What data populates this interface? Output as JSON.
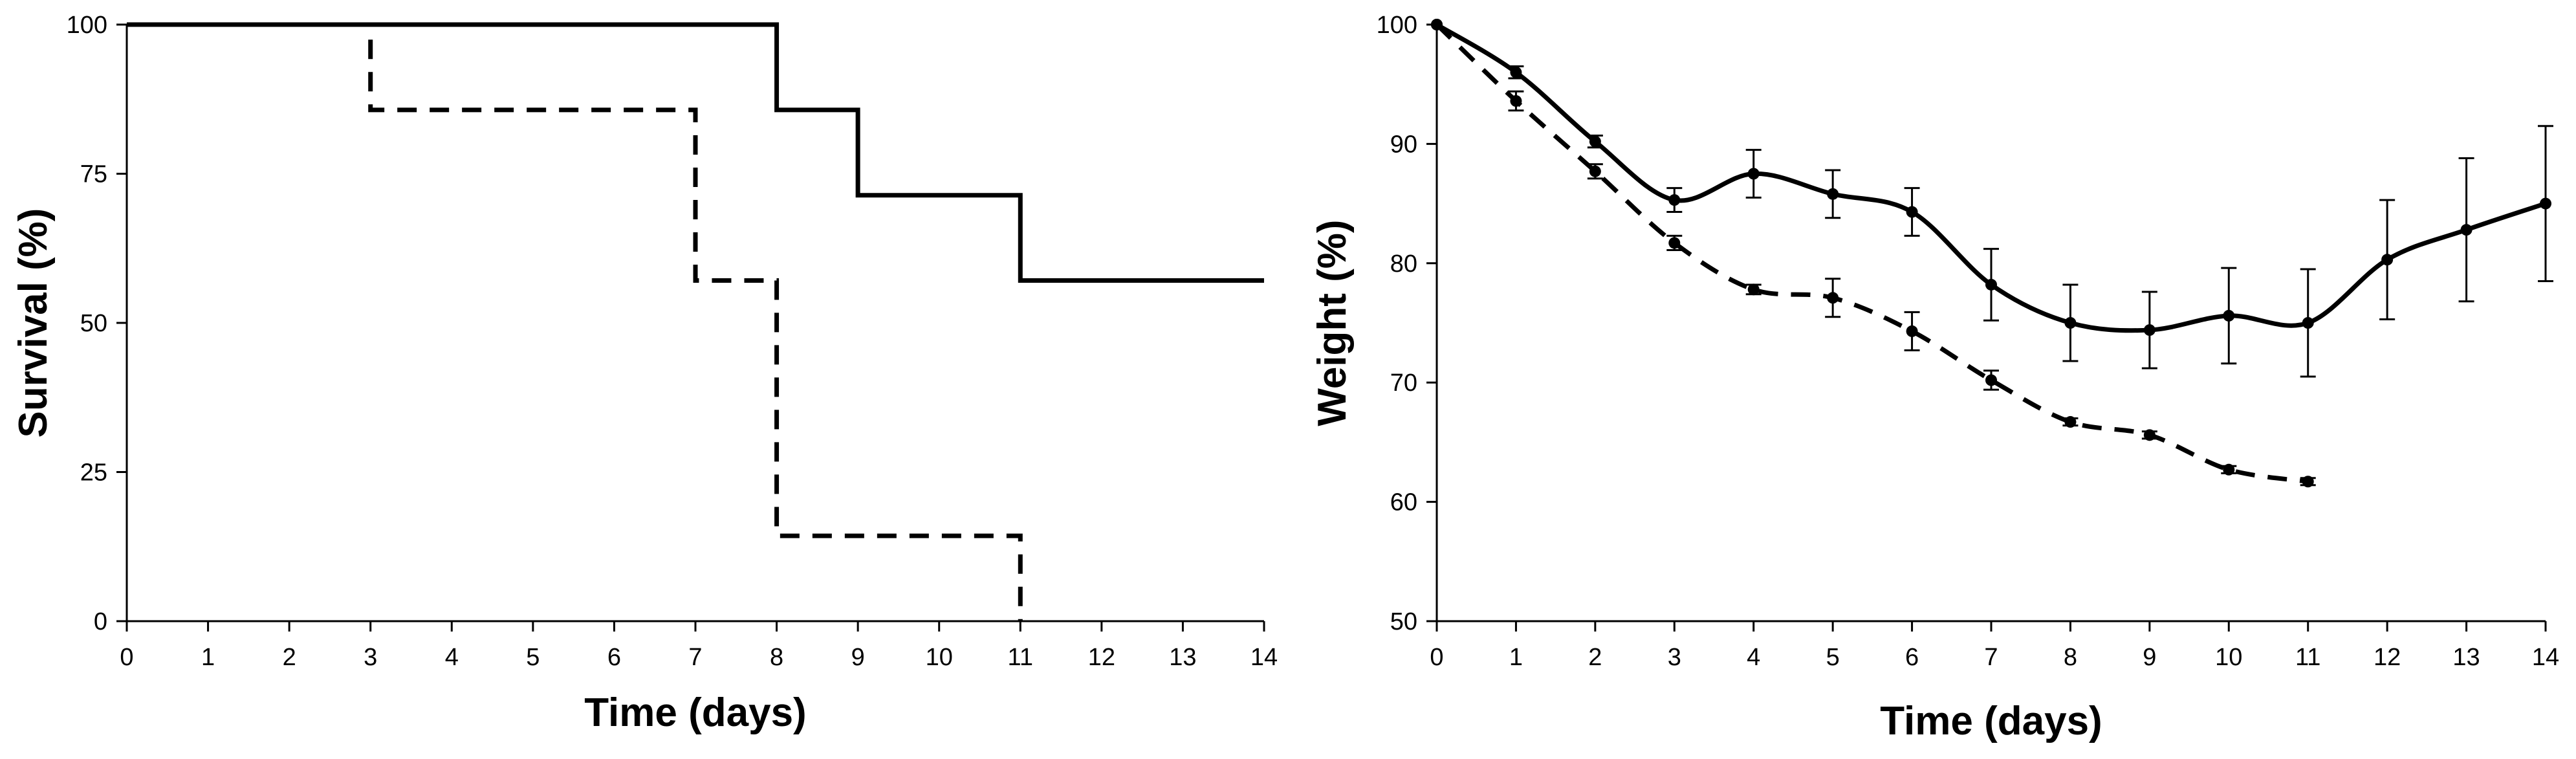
{
  "chart_data": [
    {
      "type": "line",
      "step": true,
      "xlabel": "Time (days)",
      "ylabel": "Survival (%)",
      "xlim": [
        0,
        14
      ],
      "ylim": [
        0,
        100
      ],
      "xticks": [
        0,
        1,
        2,
        3,
        4,
        5,
        6,
        7,
        8,
        9,
        10,
        11,
        12,
        13,
        14
      ],
      "yticks": [
        0,
        25,
        50,
        75,
        100
      ],
      "grid": false,
      "legend": "none",
      "series": [
        {
          "style": "solid",
          "x": [
            0,
            8,
            9,
            11,
            14
          ],
          "y": [
            100,
            85.7,
            71.4,
            57.1,
            57.1
          ]
        },
        {
          "style": "dashed",
          "x": [
            0,
            3,
            7,
            8,
            11
          ],
          "y": [
            100,
            85.7,
            57.1,
            14.3,
            0
          ]
        }
      ]
    },
    {
      "type": "line",
      "smooth": true,
      "xlabel": "Time (days)",
      "ylabel": "Weight (%)",
      "xlim": [
        0,
        14
      ],
      "ylim": [
        50,
        100
      ],
      "xticks": [
        0,
        1,
        2,
        3,
        4,
        5,
        6,
        7,
        8,
        9,
        10,
        11,
        12,
        13,
        14
      ],
      "yticks": [
        50,
        60,
        70,
        80,
        90,
        100
      ],
      "grid": false,
      "legend": "none",
      "series": [
        {
          "style": "solid",
          "x": [
            0,
            1,
            2,
            3,
            4,
            5,
            6,
            7,
            8,
            9,
            10,
            11,
            12,
            13,
            14
          ],
          "y": [
            100,
            96,
            90.2,
            85.3,
            87.5,
            85.8,
            84.3,
            78.2,
            75,
            74.4,
            75.6,
            75,
            80.3,
            82.8,
            85
          ],
          "error": [
            0,
            0.5,
            0.5,
            1,
            2,
            2,
            2,
            3,
            3.2,
            3.2,
            4,
            4.5,
            5,
            6,
            6.5
          ]
        },
        {
          "style": "dashed",
          "x": [
            0,
            1,
            2,
            3,
            4,
            5,
            6,
            7,
            8,
            9,
            10,
            11
          ],
          "y": [
            100,
            93.6,
            87.7,
            81.7,
            77.8,
            77.1,
            74.3,
            70.2,
            66.7,
            65.6,
            62.7,
            61.7
          ],
          "error": [
            0,
            0.8,
            0.6,
            0.6,
            0.4,
            1.6,
            1.6,
            0.8,
            0.3,
            0.3,
            0.3,
            0.3
          ]
        }
      ]
    }
  ]
}
